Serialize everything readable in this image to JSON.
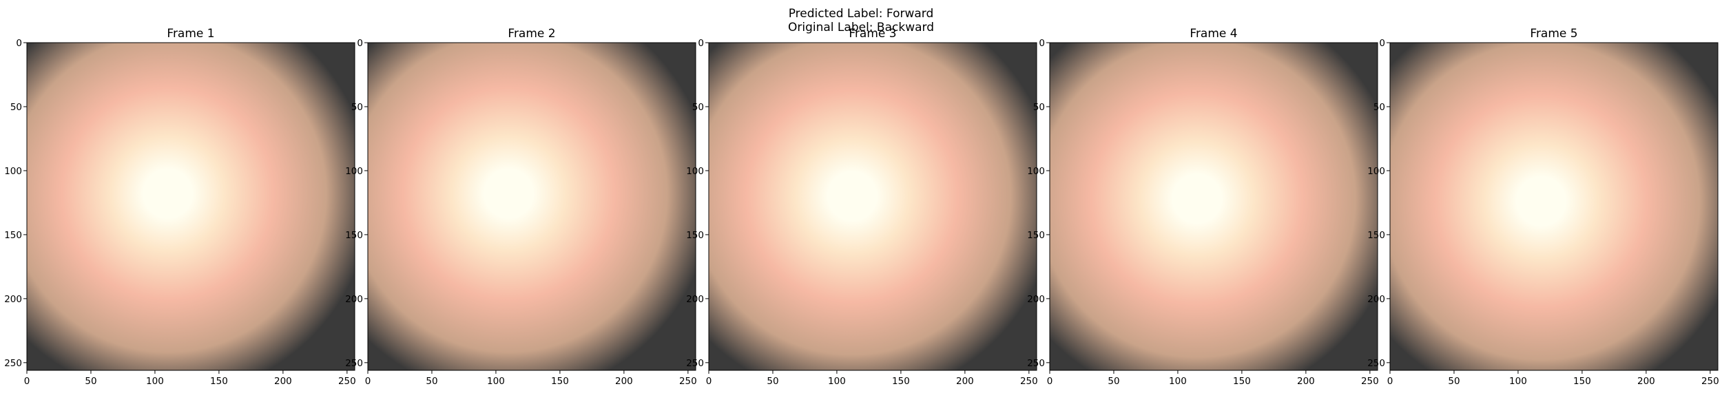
{
  "figure": {
    "suptitle_line1": "Predicted Label: Forward",
    "suptitle_line2": "Original Label: Backward"
  },
  "chart_data": {
    "type": "image_grid",
    "frames": [
      {
        "title": "Frame 1",
        "center": [
          110,
          118
        ],
        "tint": "#fde2c8"
      },
      {
        "title": "Frame 2",
        "center": [
          110,
          118
        ],
        "tint": "#fde2c8"
      },
      {
        "title": "Frame 3",
        "center": [
          112,
          120
        ],
        "tint": "#fde2c8"
      },
      {
        "title": "Frame 4",
        "center": [
          115,
          122
        ],
        "tint": "#fde2c8"
      },
      {
        "title": "Frame 5",
        "center": [
          118,
          124
        ],
        "tint": "#fde2c8"
      }
    ],
    "xlim": [
      0,
      256
    ],
    "ylim": [
      256,
      0
    ],
    "xticks": [
      0,
      50,
      100,
      150,
      200,
      250
    ],
    "yticks": [
      0,
      50,
      100,
      150,
      200,
      250
    ],
    "colors": {
      "core": "#fffef0",
      "inner": "#fde6c8",
      "mid": "#f6b9a4",
      "outer": "#c9a389",
      "edge": "#3a3a3a"
    }
  }
}
